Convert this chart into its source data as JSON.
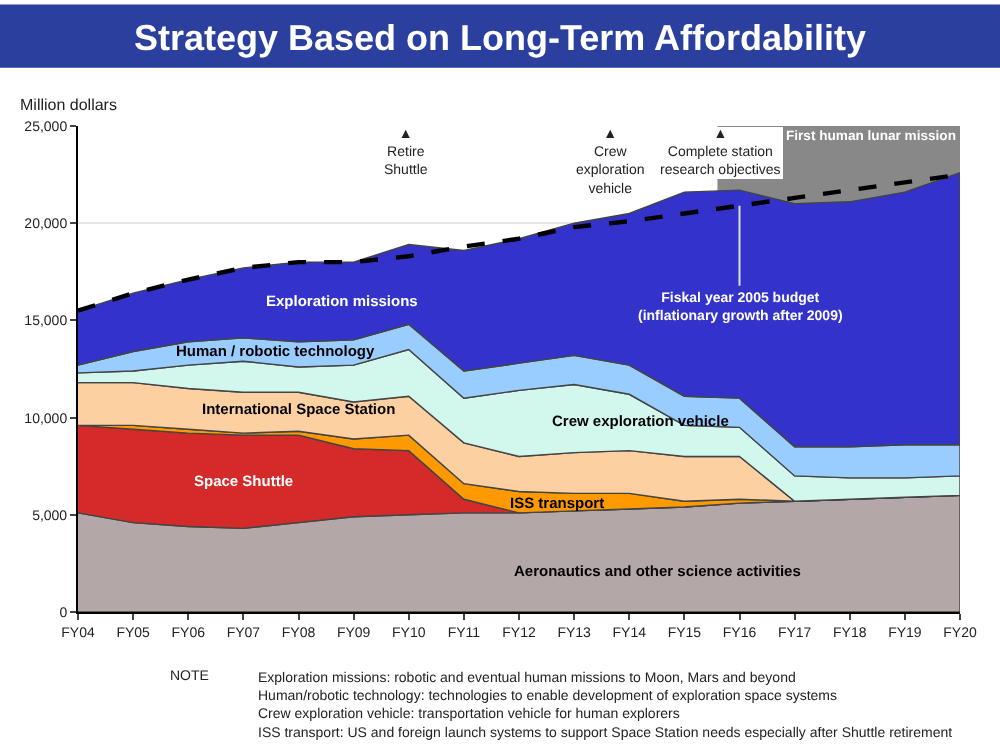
{
  "chart_data": {
    "type": "area",
    "stacked": true,
    "title": "Strategy Based on Long-Term Affordability",
    "ylabel": "Million dollars",
    "categories": [
      "FY04",
      "FY05",
      "FY06",
      "FY07",
      "FY08",
      "FY09",
      "FY10",
      "FY11",
      "FY12",
      "FY13",
      "FY14",
      "FY15",
      "FY16",
      "FY17",
      "FY18",
      "FY19",
      "FY20"
    ],
    "series": [
      {
        "name": "Aeronautics and other science activities",
        "color": "#b4a7a7",
        "values": [
          5100,
          4600,
          4400,
          4300,
          4600,
          4900,
          5000,
          5100,
          5100,
          5200,
          5300,
          5400,
          5600,
          5700,
          5800,
          5900,
          6000
        ]
      },
      {
        "name": "Space Shuttle",
        "color": "#d42a2a",
        "values": [
          4500,
          4800,
          4800,
          4800,
          4500,
          3500,
          3300,
          700,
          0,
          0,
          0,
          0,
          0,
          0,
          0,
          0,
          0
        ]
      },
      {
        "name": "ISS transport",
        "color": "#ff9900",
        "values": [
          0,
          200,
          200,
          100,
          200,
          500,
          800,
          800,
          1100,
          900,
          800,
          300,
          200,
          0,
          0,
          0,
          0
        ]
      },
      {
        "name": "International Space Station",
        "color": "#fdd0a2",
        "values": [
          2200,
          2200,
          2100,
          2100,
          2000,
          1900,
          2000,
          2100,
          1800,
          2100,
          2200,
          2300,
          2200,
          0,
          0,
          0,
          0
        ]
      },
      {
        "name": "Crew exploration vehicle",
        "color": "#d2f8ee",
        "values": [
          500,
          600,
          1200,
          1600,
          1300,
          1900,
          2400,
          2300,
          3400,
          3500,
          2900,
          1600,
          1500,
          1300,
          1100,
          1000,
          1000
        ]
      },
      {
        "name": "Human / robotic technology",
        "color": "#99ccff",
        "values": [
          400,
          1000,
          1200,
          1200,
          1300,
          1300,
          1300,
          1400,
          1400,
          1500,
          1500,
          1500,
          1500,
          1500,
          1600,
          1700,
          1600
        ]
      },
      {
        "name": "Exploration missions",
        "color": "#3333cc",
        "values": [
          2800,
          3000,
          3200,
          3600,
          4100,
          4000,
          4100,
          6200,
          6400,
          6800,
          7800,
          10500,
          10700,
          12500,
          12600,
          13000,
          14000
        ]
      },
      {
        "type": "line",
        "color": "#000000",
        "line_style": "dashed",
        "values": [
          15500,
          16400,
          17100,
          17700,
          18000,
          18000,
          18300,
          18800,
          19200,
          19800,
          20100,
          20500,
          20900,
          21300,
          21700,
          22100,
          22500
        ]
      }
    ],
    "ylim": [
      0,
      25000
    ],
    "yticks": [
      {
        "value": 0,
        "label": "0"
      },
      {
        "value": 5000,
        "label": "5,000"
      },
      {
        "value": 10000,
        "label": "10,000"
      },
      {
        "value": 15000,
        "label": "15,000"
      },
      {
        "value": 20000,
        "label": "20,000"
      },
      {
        "value": 25000,
        "label": "25,000"
      }
    ],
    "grid": "y",
    "legend": false,
    "bands": [
      {
        "axis": "x",
        "from": "FY16",
        "to": "FY20",
        "label": "First human lunar mission",
        "color": "#888888"
      }
    ],
    "annotations": [
      "▲\nRetire\nShuttle",
      "▲\nCrew\nexploration\nvehicle",
      "▲\nComplete station\nresearch objectives",
      {
        "text": "Fiskal year 2005 budget\n(inflationary growth after 2009)",
        "x": "FY16",
        "y": 20900
      },
      "NOTE",
      "Exploration missions: robotic and eventual human missions to Moon, Mars and beyond",
      "Human/robotic technology: technologies to enable development of exploration space systems",
      "Crew exploration vehicle: transportation vehicle for human explorers",
      "ISS transport: US and foreign launch systems to support Space Station needs especially after Shuttle retirement"
    ]
  }
}
